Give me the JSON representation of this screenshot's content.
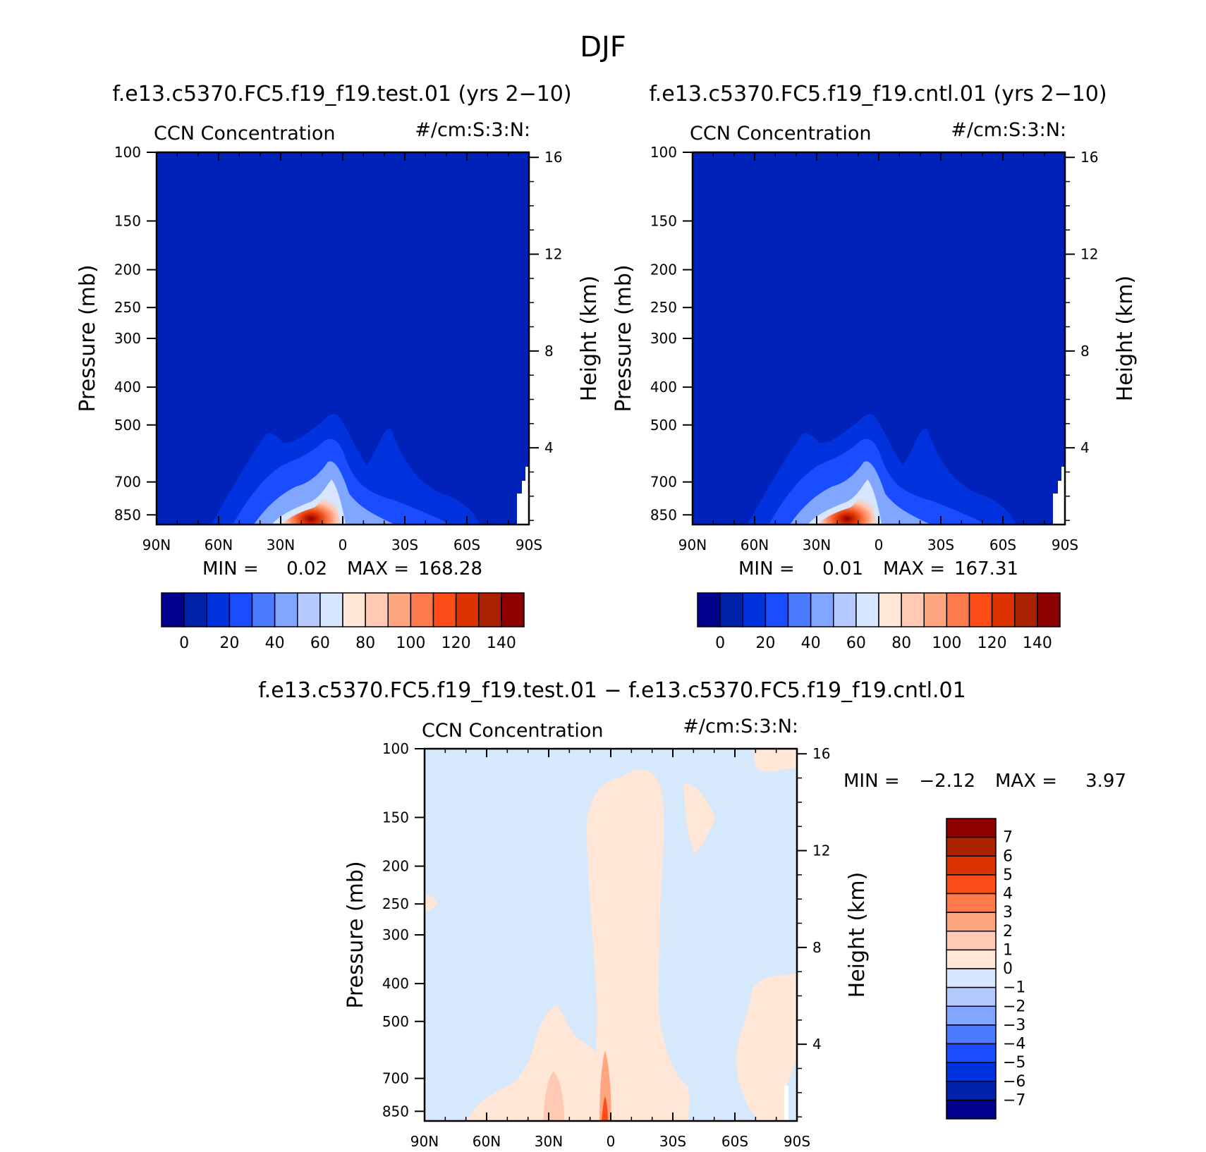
{
  "figure": {
    "title": "DJF"
  },
  "chart_data": [
    {
      "type": "heatmap",
      "case_title": "f.e13.c5370.FC5.f19_f19.test.01 (yrs 2−10)",
      "variable": "CCN Concentration",
      "units": "#/cm:S:3:N:",
      "ylabel": "Pressure (mb)",
      "y2label": "Height (km)",
      "x_ticks": [
        "90N",
        "60N",
        "30N",
        "0",
        "30S",
        "60S",
        "90S"
      ],
      "y_ticks": [
        100,
        150,
        200,
        250,
        300,
        400,
        500,
        700,
        850
      ],
      "y2_ticks": [
        16,
        12,
        8,
        4
      ],
      "xlim": [
        90,
        -90
      ],
      "ylim": [
        900,
        100
      ],
      "y_scale": "log",
      "min_label": "MIN =",
      "min_value": "0.02",
      "max_label": "MAX =",
      "max_value": "168.28",
      "colorbar": {
        "orientation": "horizontal",
        "labels": [
          "0",
          "20",
          "40",
          "60",
          "80",
          "100",
          "120",
          "140"
        ],
        "colors": [
          "#00008c",
          "#0022aa",
          "#0033dd",
          "#1a4dff",
          "#4d7bff",
          "#80a6ff",
          "#b3c9ff",
          "#d6e6ff",
          "#ffe6d6",
          "#ffc9b3",
          "#ffa680",
          "#ff7b4d",
          "#ff4d1a",
          "#dd3300",
          "#aa2200",
          "#8c0000"
        ]
      },
      "background_color": "#0022bb"
    },
    {
      "type": "heatmap",
      "case_title": "f.e13.c5370.FC5.f19_f19.cntl.01 (yrs 2−10)",
      "variable": "CCN Concentration",
      "units": "#/cm:S:3:N:",
      "ylabel": "Pressure (mb)",
      "y2label": "Height (km)",
      "x_ticks": [
        "90N",
        "60N",
        "30N",
        "0",
        "30S",
        "60S",
        "90S"
      ],
      "y_ticks": [
        100,
        150,
        200,
        250,
        300,
        400,
        500,
        700,
        850
      ],
      "y2_ticks": [
        16,
        12,
        8,
        4
      ],
      "xlim": [
        90,
        -90
      ],
      "ylim": [
        900,
        100
      ],
      "y_scale": "log",
      "min_label": "MIN =",
      "min_value": "0.01",
      "max_label": "MAX =",
      "max_value": "167.31",
      "colorbar": {
        "orientation": "horizontal",
        "labels": [
          "0",
          "20",
          "40",
          "60",
          "80",
          "100",
          "120",
          "140"
        ],
        "colors": [
          "#00008c",
          "#0022aa",
          "#0033dd",
          "#1a4dff",
          "#4d7bff",
          "#80a6ff",
          "#b3c9ff",
          "#d6e6ff",
          "#ffe6d6",
          "#ffc9b3",
          "#ffa680",
          "#ff7b4d",
          "#ff4d1a",
          "#dd3300",
          "#aa2200",
          "#8c0000"
        ]
      },
      "background_color": "#0022bb"
    },
    {
      "type": "heatmap",
      "case_title": "f.e13.c5370.FC5.f19_f19.test.01 − f.e13.c5370.FC5.f19_f19.cntl.01",
      "variable": "CCN Concentration",
      "units": "#/cm:S:3:N:",
      "ylabel": "Pressure (mb)",
      "y2label": "Height (km)",
      "x_ticks": [
        "90N",
        "60N",
        "30N",
        "0",
        "30S",
        "60S",
        "90S"
      ],
      "y_ticks": [
        100,
        150,
        200,
        250,
        300,
        400,
        500,
        700,
        850
      ],
      "y2_ticks": [
        16,
        12,
        8,
        4
      ],
      "xlim": [
        90,
        -90
      ],
      "ylim": [
        900,
        100
      ],
      "y_scale": "log",
      "min_label": "MIN =",
      "min_value": "−2.12",
      "max_label": "MAX =",
      "max_value": "3.97",
      "colorbar": {
        "orientation": "vertical",
        "labels": [
          "7",
          "6",
          "5",
          "4",
          "3",
          "2",
          "1",
          "0",
          "−1",
          "−2",
          "−3",
          "−4",
          "−5",
          "−6",
          "−7"
        ],
        "colors": [
          "#8c0000",
          "#aa2200",
          "#dd3300",
          "#ff4d1a",
          "#ff7b4d",
          "#ffa680",
          "#ffc9b3",
          "#ffe6d6",
          "#d6e6ff",
          "#b3c9ff",
          "#80a6ff",
          "#4d7bff",
          "#1a4dff",
          "#0033dd",
          "#0022aa",
          "#00008c"
        ]
      },
      "background_color": "#d6e8fb"
    }
  ]
}
